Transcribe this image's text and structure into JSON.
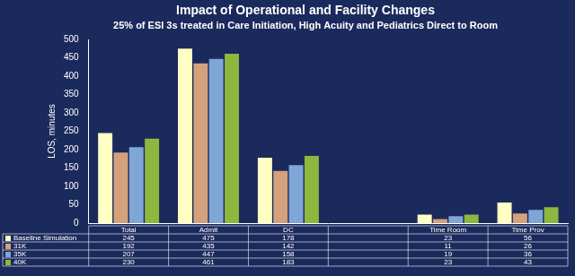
{
  "chart_data": {
    "type": "bar",
    "title": "Impact of Operational and Facility Changes",
    "subtitle": "25% of ESI 3s treated in Care Initiation, High Acuity and Pediatrics Direct to Room",
    "y_label": "LOS, minutes",
    "categories": [
      "Total",
      "Admit",
      "DC",
      null,
      "Time Room",
      "Time Prov"
    ],
    "series": [
      {
        "name": "Baseline Simulation",
        "color": "#ffffc4",
        "values": [
          245,
          475,
          178,
          null,
          23,
          56
        ]
      },
      {
        "name": "31K",
        "color": "#d4a27a",
        "values": [
          192,
          435,
          142,
          null,
          11,
          26
        ]
      },
      {
        "name": "35K",
        "color": "#7fa6d6",
        "values": [
          207,
          447,
          158,
          null,
          19,
          36
        ]
      },
      {
        "name": "40K",
        "color": "#8db840",
        "values": [
          230,
          461,
          183,
          null,
          23,
          43
        ]
      }
    ],
    "ylim": [
      0,
      500
    ],
    "yticks": [
      0,
      50,
      100,
      150,
      200,
      250,
      300,
      350,
      400,
      450,
      500
    ],
    "grid": false
  }
}
